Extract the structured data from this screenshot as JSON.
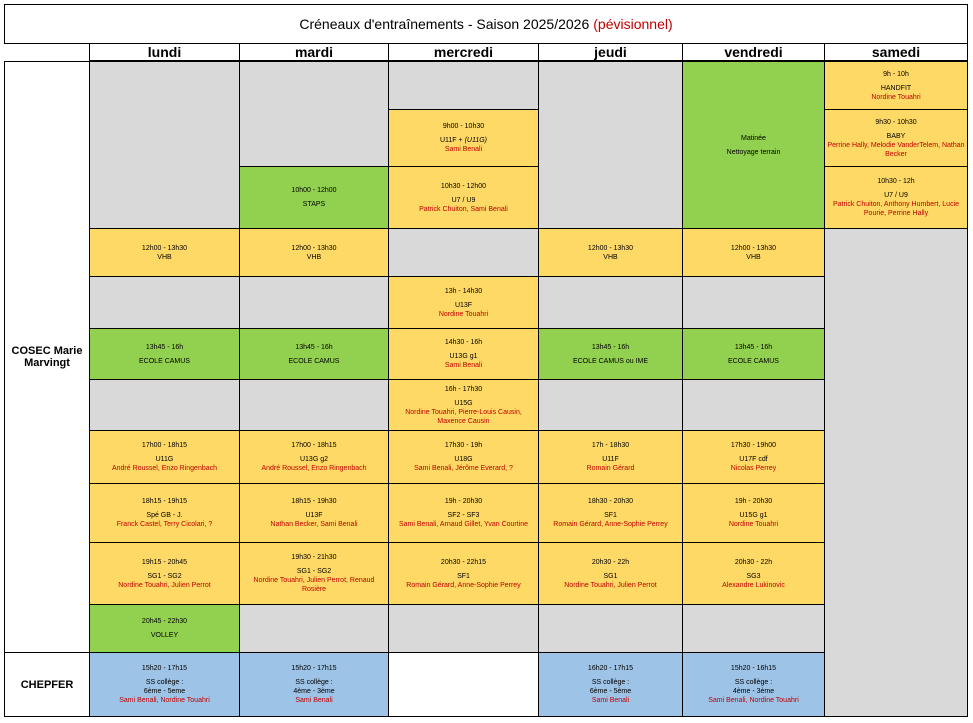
{
  "title": {
    "main": "Créneaux d'entraînements - Saison 2025/2026",
    "accent": "(pévisionnel)"
  },
  "days": [
    "lundi",
    "mardi",
    "mercredi",
    "jeudi",
    "vendredi",
    "samedi"
  ],
  "venues": {
    "cosec": "COSEC Marie Marvingt",
    "chepfer": "CHEPFER"
  },
  "cells": {
    "mon_1230": {
      "time": "12h00 - 13h30",
      "name": "VHB"
    },
    "mon_1345": {
      "time": "13h45 - 16h",
      "name": "ECOLE CAMUS"
    },
    "mon_1700": {
      "time": "17h00 - 18h15",
      "name": "U11G",
      "people": "André Roussel, Enzo Ringenbach"
    },
    "mon_1815": {
      "time": "18h15 - 19h15",
      "name": "Spé GB - J.",
      "people": "Franck Castel, Terry Cicolari, ?"
    },
    "mon_1915": {
      "time": "19h15 - 20h45",
      "name": "SG1 - SG2",
      "people": "Nordine Touahri, Julien Perrot"
    },
    "mon_2045": {
      "time": "20h45 - 22h30",
      "name": "VOLLEY"
    },
    "mon_chep": {
      "time": "15h20 - 17h15",
      "name": "SS collège :",
      "name2": "6ème - 5eme",
      "people": "Sami Benali, Nordine Touahri"
    },
    "tue_1000": {
      "time": "10h00 - 12h00",
      "name": "STAPS"
    },
    "tue_1230": {
      "time": "12h00 - 13h30",
      "name": "VHB"
    },
    "tue_1345": {
      "time": "13h45 - 16h",
      "name": "ECOLE CAMUS"
    },
    "tue_1700": {
      "time": "17h00 - 18h15",
      "name": "U13G g2",
      "people": "André Roussel, Enzo Ringenbach"
    },
    "tue_1815": {
      "time": "18h15 - 19h30",
      "name": "U13F",
      "people": "Nathan Becker, Sami Benali"
    },
    "tue_1930": {
      "time": "19h30 - 21h30",
      "name": "SG1 - SG2",
      "people": "Nordine Touahri, Julien Perrot, Renaud Rosière"
    },
    "tue_chep": {
      "time": "15h20 - 17h15",
      "name": "SS collège :",
      "name2": "4ème - 3ème",
      "people": "Sami Benali"
    },
    "wed_0900": {
      "time": "9h00 - 10h30",
      "name": "U11F + ",
      "name_italic": "(U11G)",
      "people": "Sami Benali"
    },
    "wed_1030": {
      "time": "10h30 - 12h00",
      "name": "U7 / U9",
      "people": "Patrick Chuiton, Sami Benali"
    },
    "wed_1300": {
      "time": "13h - 14h30",
      "name": "U13F",
      "people": "Nordine Touahri"
    },
    "wed_1430": {
      "time": "14h30 - 16h",
      "name": "U13G g1",
      "people": "Sami Benali"
    },
    "wed_1600": {
      "time": "16h - 17h30",
      "name": "U15G",
      "people": "Nordine Touahri, Pierre-Louis Causin, Maxence Causin"
    },
    "wed_1730": {
      "time": "17h30 - 19h",
      "name": "U18G",
      "people": "Sami Benali, Jérôme Everard, ?"
    },
    "wed_1900": {
      "time": "19h - 20h30",
      "name": "SF2 - SF3",
      "people": "Sami Benali, Arnaud Gillet, Yvan Courtine"
    },
    "wed_2030": {
      "time": "20h30 - 22h15",
      "name": "SF1",
      "people": "Romain Gérard, Anne-Sophie Perrey"
    },
    "thu_1230": {
      "time": "12h00 - 13h30",
      "name": "VHB"
    },
    "thu_1345": {
      "time": "13h45 - 16h",
      "name": "ECOLE CAMUS ou IME"
    },
    "thu_1700": {
      "time": "17h - 18h30",
      "name": "U11F",
      "people": "Romain Gérard"
    },
    "thu_1830": {
      "time": "18h30 - 20h30",
      "name": "SF1",
      "people": "Romain Gérard, Anne-Sophie Perrey"
    },
    "thu_2030": {
      "time": "20h30 - 22h",
      "name": "SG1",
      "people": "Nordine Touahri, Julien Perrot"
    },
    "thu_chep": {
      "time": "16h20 - 17h15",
      "name": "SS collège :",
      "name2": "6ème - 5ème",
      "people": "Sami Benali"
    },
    "fri_mat": {
      "time": "Matinée",
      "name": "Nettoyage terrain"
    },
    "fri_1230": {
      "time": "12h00 - 13h30",
      "name": "VHB"
    },
    "fri_1345": {
      "time": "13h45 - 16h",
      "name": "ECOLE CAMUS"
    },
    "fri_1730": {
      "time": "17h30 - 19h00",
      "name": "U17F cdf",
      "people": "Nicolas Perrey"
    },
    "fri_1900": {
      "time": "19h - 20h30",
      "name": "U15G g1",
      "people": "Nordine Touahri"
    },
    "fri_2030": {
      "time": "20h30 - 22h",
      "name": "SG3",
      "people": "Alexandre Lukinovic"
    },
    "fri_chep": {
      "time": "15h20 - 16h15",
      "name": "SS collège :",
      "name2": "4ème - 3ème",
      "people": "Sami Benali, Nordine Touahri"
    },
    "sat_0900": {
      "time": "9h - 10h",
      "name": "HANDFIT",
      "people": "Nordine Touahri"
    },
    "sat_0930": {
      "time": "9h30 - 10h30",
      "name": "BABY",
      "people": "Perrine Hally, Melodie VanderTelem, Nathan Becker"
    },
    "sat_1030": {
      "time": "10h30 - 12h",
      "name": "U7 / U9",
      "people": "Patrick Chuiton, Anthony Humbert, Lucie Pourie, Perrine Hally"
    }
  },
  "colors": {
    "gray": "#d9d9d9",
    "yellow": "#ffd966",
    "green": "#92d050",
    "blue": "#9dc3e6",
    "accent": "#c00000"
  }
}
